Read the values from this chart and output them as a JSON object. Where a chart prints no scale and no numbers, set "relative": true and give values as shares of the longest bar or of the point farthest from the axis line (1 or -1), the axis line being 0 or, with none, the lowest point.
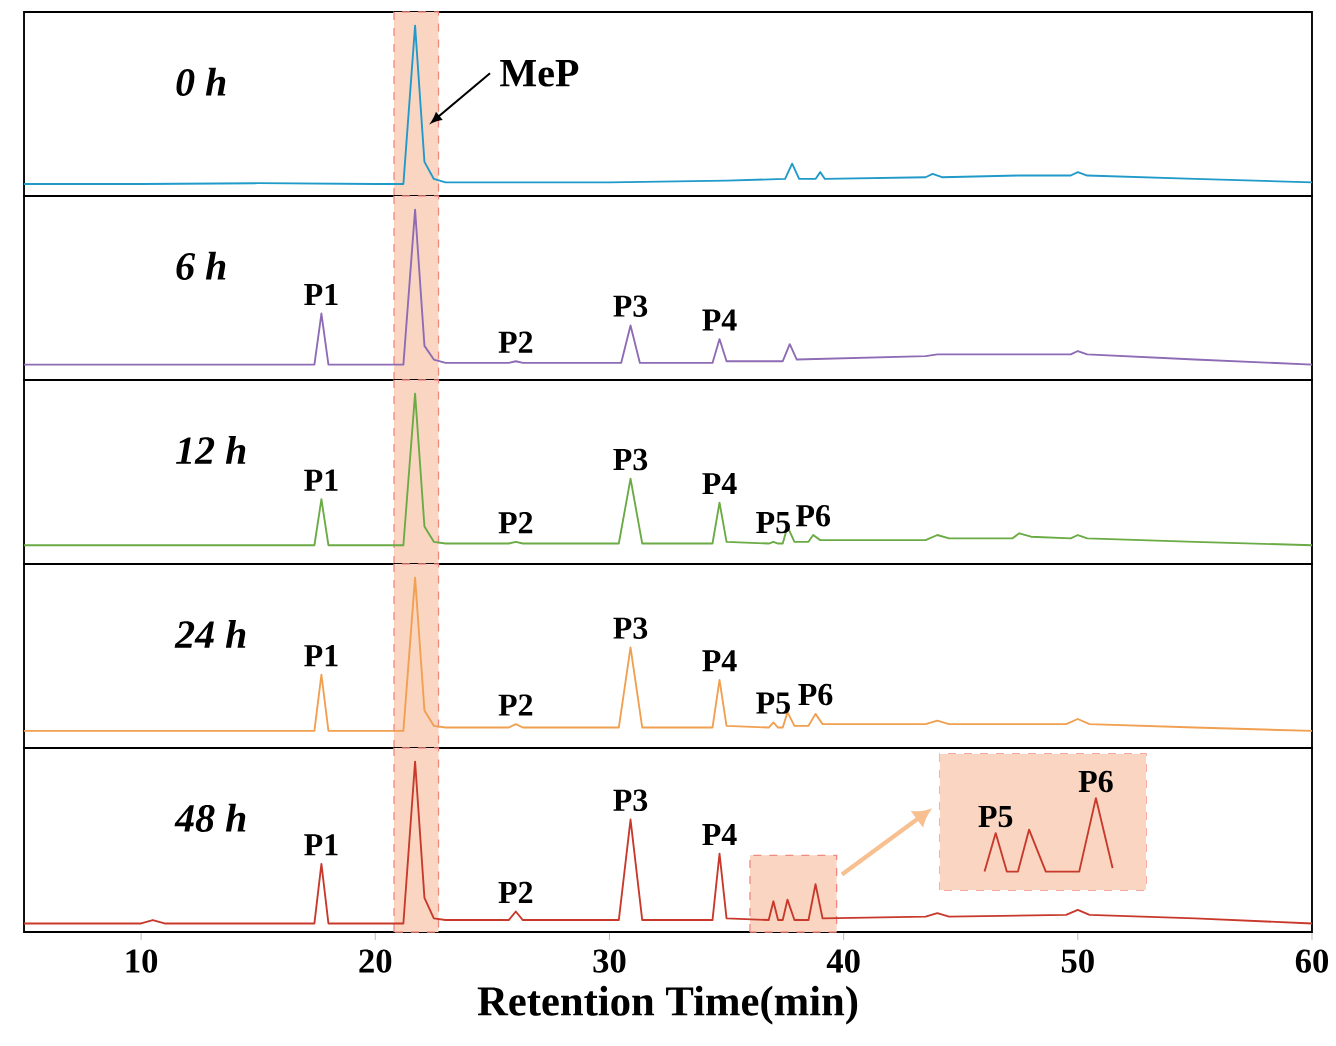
{
  "chart_data": [
    {
      "type": "line",
      "title": "0 h",
      "relative": true,
      "xlim": [
        5,
        60
      ],
      "tick_labels": false,
      "series": [
        {
          "color": "#1f9ac9",
          "x": [
            5,
            10,
            15,
            20,
            21.2,
            21.7,
            22.1,
            22.5,
            23,
            30,
            35,
            37.5,
            37.8,
            38.1,
            38.8,
            39.0,
            39.2,
            43.5,
            43.8,
            44.2,
            47.5,
            49.7,
            50.0,
            50.4,
            55,
            60
          ],
          "values": [
            0.07,
            0.07,
            0.075,
            0.07,
            0.07,
            1,
            0.2,
            0.1,
            0.08,
            0.08,
            0.09,
            0.1,
            0.19,
            0.1,
            0.1,
            0.14,
            0.1,
            0.11,
            0.13,
            0.11,
            0.12,
            0.12,
            0.14,
            0.12,
            0.1,
            0.08
          ]
        }
      ],
      "bands": [
        {
          "axis": "x",
          "from": 20.8,
          "to": 22.7,
          "color": "#f9d5c2"
        }
      ],
      "annotations": [
        {
          "text": "MeP",
          "x": 21.7,
          "y": 1
        }
      ]
    },
    {
      "type": "line",
      "title": "6 h",
      "relative": true,
      "xlim": [
        5,
        60
      ],
      "tick_labels": false,
      "series": [
        {
          "color": "#8e6bb5",
          "x": [
            5,
            10,
            15,
            17.4,
            17.7,
            18.0,
            20,
            21.2,
            21.7,
            22.1,
            22.5,
            23,
            25.7,
            26.0,
            26.3,
            30.5,
            30.9,
            31.3,
            34.4,
            34.7,
            35.0,
            37.4,
            37.7,
            38.0,
            43.5,
            44,
            47.5,
            49.7,
            50,
            50.4,
            55,
            60
          ],
          "values": [
            0.09,
            0.09,
            0.09,
            0.09,
            0.39,
            0.09,
            0.09,
            0.09,
            1,
            0.2,
            0.12,
            0.1,
            0.1,
            0.11,
            0.1,
            0.1,
            0.32,
            0.1,
            0.1,
            0.24,
            0.11,
            0.11,
            0.21,
            0.12,
            0.14,
            0.15,
            0.15,
            0.15,
            0.17,
            0.15,
            0.12,
            0.09
          ]
        }
      ],
      "bands": [
        {
          "axis": "x",
          "from": 20.8,
          "to": 22.7,
          "color": "#f9d5c2"
        }
      ],
      "annotations": [
        {
          "text": "P1",
          "x": 17.7,
          "y": 0.39
        },
        {
          "text": "P2",
          "x": 26.0,
          "y": 0.11
        },
        {
          "text": "P3",
          "x": 30.9,
          "y": 0.32
        },
        {
          "text": "P4",
          "x": 34.7,
          "y": 0.24
        }
      ]
    },
    {
      "type": "line",
      "title": "12 h",
      "relative": true,
      "xlim": [
        5,
        60
      ],
      "tick_labels": false,
      "series": [
        {
          "color": "#6aab45",
          "x": [
            5,
            10,
            15,
            17.4,
            17.7,
            18.0,
            20,
            21.2,
            21.7,
            22.1,
            22.5,
            23,
            25.7,
            26.0,
            26.3,
            30.4,
            30.9,
            31.4,
            34.4,
            34.7,
            35.0,
            36.8,
            37.0,
            37.2,
            37.4,
            37.6,
            37.9,
            38.5,
            38.7,
            39.0,
            43.5,
            44,
            44.5,
            47.2,
            47.5,
            48,
            49.7,
            50,
            50.4,
            55,
            60
          ],
          "values": [
            0.11,
            0.11,
            0.11,
            0.11,
            0.38,
            0.11,
            0.11,
            0.11,
            1,
            0.22,
            0.13,
            0.12,
            0.12,
            0.13,
            0.12,
            0.12,
            0.5,
            0.12,
            0.12,
            0.36,
            0.13,
            0.12,
            0.13,
            0.12,
            0.12,
            0.22,
            0.13,
            0.13,
            0.17,
            0.14,
            0.14,
            0.17,
            0.15,
            0.15,
            0.18,
            0.16,
            0.15,
            0.17,
            0.15,
            0.13,
            0.11
          ]
        }
      ],
      "bands": [
        {
          "axis": "x",
          "from": 20.8,
          "to": 22.7,
          "color": "#f9d5c2"
        }
      ],
      "annotations": [
        {
          "text": "P1",
          "x": 17.7,
          "y": 0.38
        },
        {
          "text": "P2",
          "x": 26.0,
          "y": 0.13
        },
        {
          "text": "P3",
          "x": 30.9,
          "y": 0.5
        },
        {
          "text": "P4",
          "x": 34.7,
          "y": 0.36
        },
        {
          "text": "P5",
          "x": 37.0,
          "y": 0.13
        },
        {
          "text": "P6",
          "x": 38.7,
          "y": 0.17
        }
      ]
    },
    {
      "type": "line",
      "title": "24 h",
      "relative": true,
      "xlim": [
        5,
        60
      ],
      "tick_labels": false,
      "series": [
        {
          "color": "#f0a050",
          "x": [
            5,
            10,
            15,
            17.4,
            17.7,
            18.0,
            20,
            21.2,
            21.7,
            22.1,
            22.5,
            23,
            25.7,
            26.0,
            26.3,
            30.4,
            30.9,
            31.4,
            34.4,
            34.7,
            35.0,
            36.8,
            37.0,
            37.2,
            37.4,
            37.6,
            37.9,
            38.5,
            38.8,
            39.1,
            43.5,
            44,
            44.5,
            49.5,
            50,
            50.5,
            55,
            60
          ],
          "values": [
            0.1,
            0.1,
            0.1,
            0.1,
            0.43,
            0.1,
            0.1,
            0.1,
            1,
            0.22,
            0.13,
            0.12,
            0.12,
            0.14,
            0.12,
            0.12,
            0.59,
            0.12,
            0.12,
            0.4,
            0.13,
            0.12,
            0.15,
            0.12,
            0.12,
            0.21,
            0.13,
            0.13,
            0.2,
            0.14,
            0.14,
            0.16,
            0.14,
            0.14,
            0.17,
            0.14,
            0.12,
            0.1
          ]
        }
      ],
      "bands": [
        {
          "axis": "x",
          "from": 20.8,
          "to": 22.7,
          "color": "#f9d5c2"
        }
      ],
      "annotations": [
        {
          "text": "P1",
          "x": 17.7,
          "y": 0.43
        },
        {
          "text": "P2",
          "x": 26.0,
          "y": 0.14
        },
        {
          "text": "P3",
          "x": 30.9,
          "y": 0.59
        },
        {
          "text": "P4",
          "x": 34.7,
          "y": 0.4
        },
        {
          "text": "P5",
          "x": 37.0,
          "y": 0.15
        },
        {
          "text": "P6",
          "x": 38.8,
          "y": 0.2
        }
      ]
    },
    {
      "type": "line",
      "title": "48 h",
      "relative": true,
      "xlim": [
        5,
        60
      ],
      "xticks": [
        10,
        20,
        30,
        40,
        50,
        60
      ],
      "tick_labels": "x",
      "xlabel": "Retention Time(min)",
      "series": [
        {
          "color": "#c8392b",
          "x": [
            5,
            10,
            10.5,
            11,
            15,
            17.4,
            17.7,
            18.0,
            20,
            21.2,
            21.7,
            22.1,
            22.5,
            23,
            25.7,
            26.0,
            26.3,
            30.4,
            30.9,
            31.4,
            34.4,
            34.7,
            35.0,
            36.8,
            37.0,
            37.2,
            37.4,
            37.6,
            37.9,
            38.5,
            38.8,
            39.1,
            43.5,
            44,
            44.5,
            49.5,
            50,
            50.5,
            55,
            60
          ],
          "values": [
            0.05,
            0.05,
            0.07,
            0.05,
            0.05,
            0.05,
            0.4,
            0.05,
            0.05,
            0.05,
            1,
            0.2,
            0.08,
            0.07,
            0.07,
            0.12,
            0.07,
            0.07,
            0.66,
            0.07,
            0.07,
            0.46,
            0.08,
            0.07,
            0.18,
            0.07,
            0.07,
            0.19,
            0.07,
            0.07,
            0.28,
            0.08,
            0.09,
            0.11,
            0.09,
            0.1,
            0.13,
            0.1,
            0.08,
            0.05
          ]
        }
      ],
      "bands": [
        {
          "axis": "x",
          "from": 20.8,
          "to": 22.7,
          "color": "#f9d5c2"
        },
        {
          "axis": "x",
          "from": 36.0,
          "to": 39.7,
          "color": "#f9d5c2"
        }
      ],
      "annotations": [
        {
          "text": "P1",
          "x": 17.7,
          "y": 0.4
        },
        {
          "text": "P2",
          "x": 26.0,
          "y": 0.12
        },
        {
          "text": "P3",
          "x": 30.9,
          "y": 0.66
        },
        {
          "text": "P4",
          "x": 34.7,
          "y": 0.46
        },
        "P5",
        "P6"
      ]
    }
  ]
}
